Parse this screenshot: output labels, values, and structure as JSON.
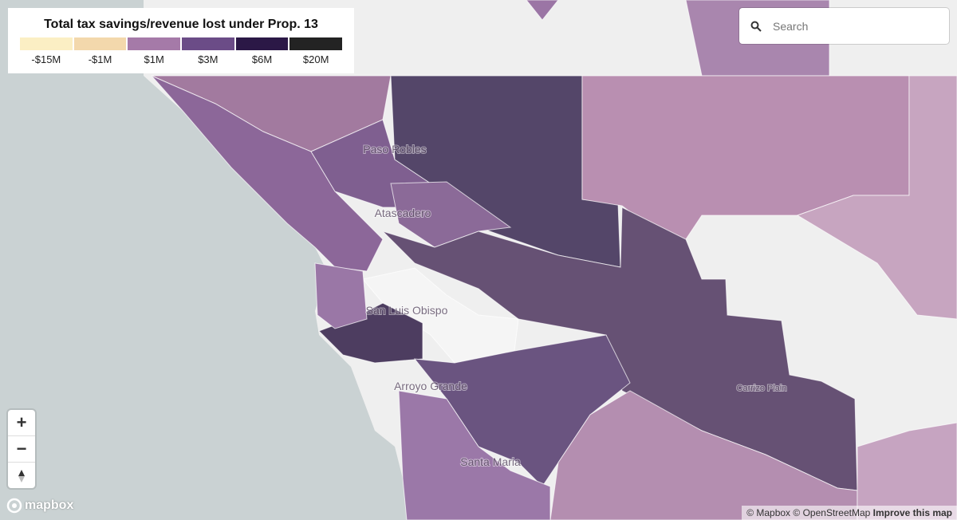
{
  "legend": {
    "title": "Total tax savings/revenue lost under Prop. 13",
    "items": [
      {
        "label": "-$15M",
        "color": "#fbefc4"
      },
      {
        "label": "-$1M",
        "color": "#f3d8ac"
      },
      {
        "label": "$1M",
        "color": "#a57aa8"
      },
      {
        "label": "$3M",
        "color": "#6b4c87"
      },
      {
        "label": "$6M",
        "color": "#2b1846"
      },
      {
        "label": "$20M",
        "color": "#232323"
      }
    ]
  },
  "search": {
    "placeholder": "Search"
  },
  "controls": {
    "zoom_in": "+",
    "zoom_out": "−"
  },
  "places": [
    "Paso Robles",
    "Atascadero",
    "San Luis Obispo",
    "Arroyo Grande",
    "Santa Maria",
    "Carrizo Plain"
  ],
  "logo": "mapbox",
  "attribution": {
    "mapbox": "© Mapbox",
    "osm": "© OpenStreetMap",
    "improve": "Improve this map"
  }
}
